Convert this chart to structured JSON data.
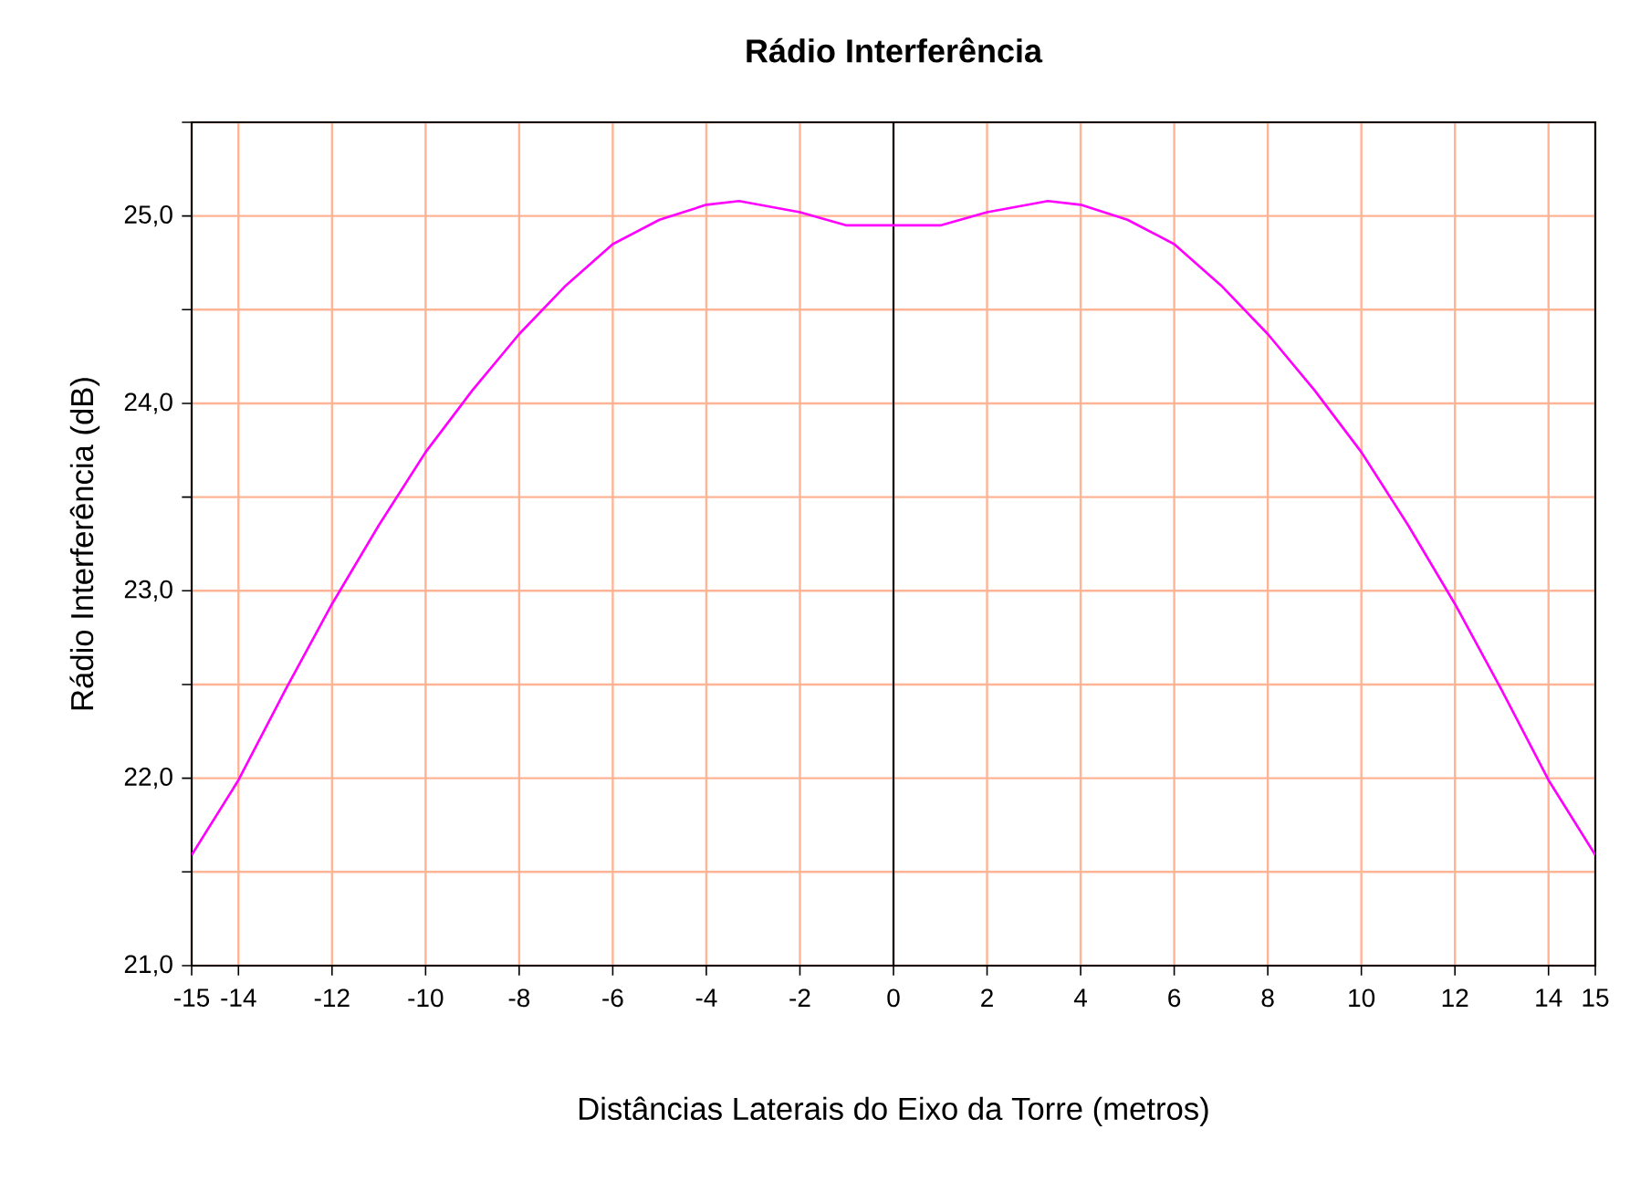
{
  "chart_data": {
    "type": "line",
    "title": "Rádio Interferência",
    "xlabel": "Distâncias Laterais do Eixo da Torre (metros)",
    "ylabel": "Rádio Interferência (dB)",
    "x": [
      -15,
      -14,
      -13,
      -12,
      -11,
      -10,
      -9,
      -8,
      -7,
      -6,
      -5,
      -4,
      -3.3,
      -2,
      -1,
      0,
      1,
      2,
      3.3,
      4,
      5,
      6,
      7,
      8,
      9,
      10,
      11,
      12,
      13,
      14,
      15
    ],
    "series": [
      {
        "color": "#ff00ff",
        "values": [
          21.59,
          21.99,
          22.47,
          22.93,
          23.35,
          23.74,
          24.07,
          24.37,
          24.63,
          24.85,
          24.98,
          25.06,
          25.08,
          25.02,
          24.95,
          24.95,
          24.95,
          25.02,
          25.08,
          25.06,
          24.98,
          24.85,
          24.63,
          24.37,
          24.07,
          23.74,
          23.35,
          22.93,
          22.47,
          21.99,
          21.59
        ]
      }
    ],
    "xlim": [
      -15,
      15
    ],
    "ylim": [
      21,
      25.5
    ],
    "xticks": [
      -15,
      -14,
      -12,
      -10,
      -8,
      -6,
      -4,
      -2,
      0,
      2,
      4,
      6,
      8,
      10,
      12,
      14,
      15
    ],
    "yticks": [
      {
        "value": 21,
        "label": "21,0"
      },
      {
        "value": 21.5,
        "label": null
      },
      {
        "value": 22,
        "label": "22,0"
      },
      {
        "value": 22.5,
        "label": null
      },
      {
        "value": 23,
        "label": "23,0"
      },
      {
        "value": 23.5,
        "label": null
      },
      {
        "value": 24,
        "label": "24,0"
      },
      {
        "value": 24.5,
        "label": null
      },
      {
        "value": 25,
        "label": "25,0"
      },
      {
        "value": 25.5,
        "label": null
      }
    ],
    "ref_lines": [
      {
        "axis": "x",
        "value": 0,
        "color": "#000000"
      }
    ],
    "grid": true,
    "marker": "none",
    "line_style": "solid"
  }
}
